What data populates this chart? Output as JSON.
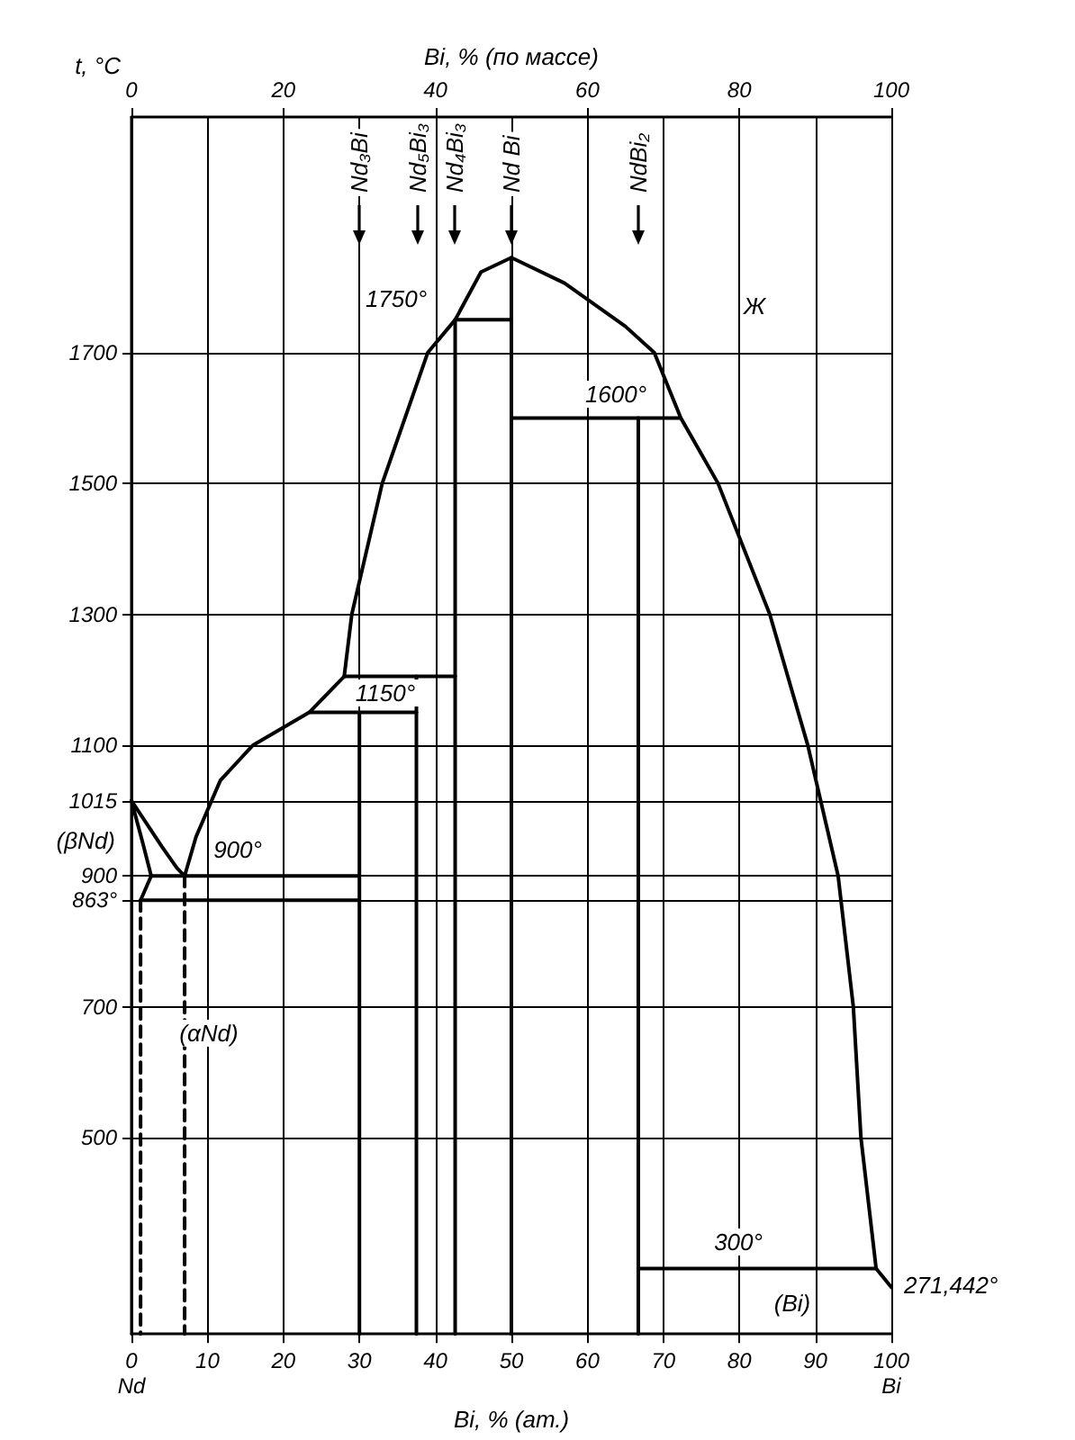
{
  "chart_data": {
    "type": "line",
    "xlabel": "Bi, % (ат.)",
    "x2label": "Bi, % (по массе)",
    "ylabel": "t, °C",
    "xlim": [
      0,
      100
    ],
    "xticks": [
      {
        "value": 0,
        "label": "0\nNd"
      },
      10,
      20,
      30,
      40,
      50,
      60,
      70,
      80,
      90,
      {
        "value": 100,
        "label": "100\nBi"
      }
    ],
    "x2lim": [
      0,
      100
    ],
    "x2ticks": [
      0,
      20,
      40,
      60,
      80,
      100
    ],
    "ylim": [
      200,
      2060
    ],
    "yticks": [
      500,
      700,
      {
        "value": 863,
        "label": "863°"
      },
      900,
      1015,
      1100,
      1300,
      1500,
      1700
    ],
    "grid": true,
    "marker": "none",
    "series": [
      {
        "color": "#000000",
        "x": [
          0,
          2,
          4,
          6,
          7
        ],
        "values": [
          1015,
          980,
          945,
          912,
          900
        ]
      },
      {
        "color": "#000000",
        "x": [
          7,
          8.5,
          11.7,
          16,
          23.4,
          28
        ],
        "values": [
          900,
          960,
          1046,
          1100,
          1150,
          1205
        ]
      },
      {
        "color": "#000000",
        "x": [
          28,
          29,
          33,
          39,
          42.6,
          46,
          50,
          57,
          65,
          68.8,
          72.3,
          77.2,
          84,
          89,
          93,
          95,
          96,
          98,
          100
        ],
        "values": [
          1205,
          1300,
          1500,
          1700,
          1750,
          1823,
          1845,
          1806,
          1740,
          1700,
          1600,
          1500,
          1300,
          1100,
          900,
          700,
          500,
          300,
          271.442
        ]
      },
      {
        "color": "#000000",
        "x": [
          0,
          1.5,
          2.6,
          1.2
        ],
        "values": [
          1015,
          950,
          900,
          863
        ]
      },
      {
        "color": "#000000",
        "x": [
          2.6,
          30
        ],
        "values": [
          900,
          900
        ]
      },
      {
        "color": "#000000",
        "x": [
          1.2,
          30
        ],
        "values": [
          863,
          863
        ]
      },
      {
        "color": "#000000",
        "x": [
          30,
          30
        ],
        "values": [
          200,
          1150
        ]
      },
      {
        "color": "#000000",
        "x": [
          23.4,
          37.5
        ],
        "values": [
          1150,
          1150
        ]
      },
      {
        "color": "#000000",
        "x": [
          37.5,
          37.5
        ],
        "values": [
          200,
          1205
        ]
      },
      {
        "color": "#000000",
        "x": [
          28,
          42.6
        ],
        "values": [
          1205,
          1205
        ]
      },
      {
        "color": "#000000",
        "x": [
          42.6,
          42.6
        ],
        "values": [
          200,
          1750
        ]
      },
      {
        "color": "#000000",
        "x": [
          42.6,
          50
        ],
        "values": [
          1750,
          1750
        ]
      },
      {
        "color": "#000000",
        "x": [
          50,
          50
        ],
        "values": [
          200,
          1845
        ]
      },
      {
        "color": "#000000",
        "x": [
          50,
          72.3
        ],
        "values": [
          1600,
          1600
        ]
      },
      {
        "color": "#000000",
        "x": [
          66.7,
          66.7
        ],
        "values": [
          200,
          1600
        ]
      },
      {
        "color": "#000000",
        "x": [
          66.7,
          98
        ],
        "values": [
          300,
          300
        ]
      },
      {
        "color": "#000000",
        "x": [
          1.2,
          1.2
        ],
        "values": [
          863,
          200
        ],
        "line_style": "dashed"
      },
      {
        "color": "#000000",
        "x": [
          7,
          7
        ],
        "values": [
          900,
          200
        ],
        "line_style": "dashed"
      }
    ],
    "annotations": [
      "Nd₃Bi",
      "Nd₅Bi₃",
      "Nd₄Bi₃",
      "Nd Bi",
      "NdBi₂",
      "Ж",
      "1750°",
      "1600°",
      "1150°",
      "900°",
      "300°",
      "(Bi)",
      "271,442°",
      "(βNd)",
      "(αNd)"
    ]
  }
}
